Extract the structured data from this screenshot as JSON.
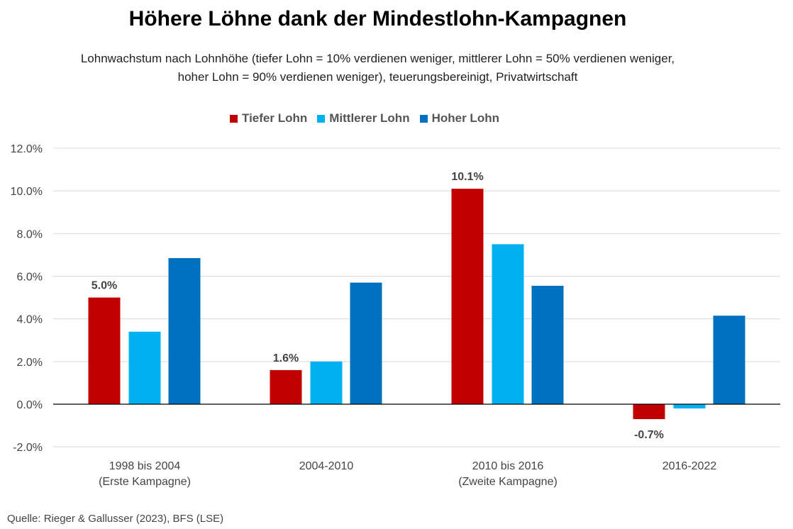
{
  "title": "Höhere Löhne dank der Mindestlohn-Kampagnen",
  "subtitle_line1": "Lohnwachstum nach Lohnhöhe (tiefer Lohn = 10% verdienen weniger, mittlerer Lohn = 50% verdienen weniger,",
  "subtitle_line2": "hoher Lohn = 90% verdienen weniger), teuerungsbereinigt, Privatwirtschaft",
  "source": "Quelle: Rieger & Gallusser (2023), BFS (LSE)",
  "chart_data": {
    "type": "bar",
    "categories": [
      [
        "1998 bis 2004",
        "(Erste Kampagne)"
      ],
      [
        "2004-2010"
      ],
      [
        "2010 bis 2016",
        "(Zweite Kampagne)"
      ],
      [
        "2016-2022"
      ]
    ],
    "series": [
      {
        "name": "Tiefer Lohn",
        "color": "#c00000",
        "values": [
          5.0,
          1.6,
          10.1,
          -0.7
        ]
      },
      {
        "name": "Mittlerer Lohn",
        "color": "#00b0f0",
        "values": [
          3.4,
          2.0,
          7.5,
          -0.2
        ]
      },
      {
        "name": "Hoher Lohn",
        "color": "#0070c0",
        "values": [
          6.85,
          5.7,
          5.55,
          4.15
        ]
      }
    ],
    "data_labels": [
      {
        "series": 0,
        "index": 0,
        "text": "5.0%"
      },
      {
        "series": 0,
        "index": 1,
        "text": "1.6%"
      },
      {
        "series": 0,
        "index": 2,
        "text": "10.1%"
      },
      {
        "series": 0,
        "index": 3,
        "text": "-0.7%"
      }
    ],
    "ylim": [
      -2,
      12
    ],
    "yticks": [
      "-2.0%",
      "0.0%",
      "2.0%",
      "4.0%",
      "6.0%",
      "8.0%",
      "10.0%",
      "12.0%"
    ],
    "ytick_values": [
      -2,
      0,
      2,
      4,
      6,
      8,
      10,
      12
    ],
    "grid": true,
    "legend_position": "top"
  }
}
